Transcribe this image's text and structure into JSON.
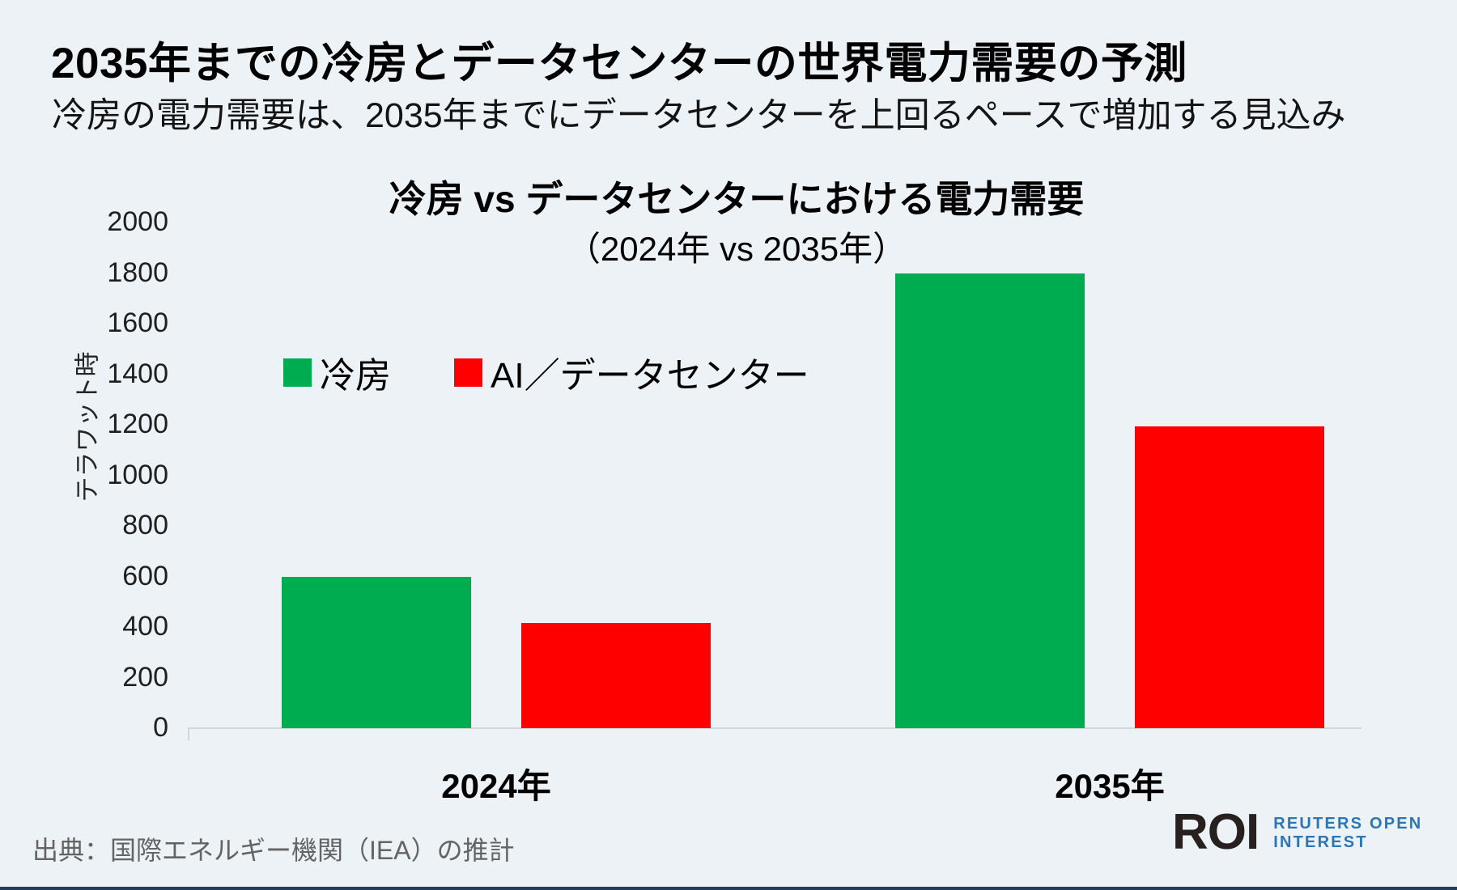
{
  "page": {
    "title": "2035年までの冷房とデータセンターの世界電力需要の予測",
    "subtitle": "冷房の電力需要は、2035年までにデータセンターを上回るペースで増加する見込み",
    "source": "出典：国際エネルギー機関（IEA）の推計",
    "logo": {
      "short": "ROI",
      "line1": "REUTERS OPEN",
      "line2": "INTEREST"
    }
  },
  "chart_data": {
    "type": "bar",
    "title": "冷房 vs データセンターにおける電力需要",
    "subtitle": "（2024年 vs 2035年）",
    "ylabel": "テラワット時",
    "categories": [
      "2024年",
      "2035年"
    ],
    "series": [
      {
        "name": "冷房",
        "color": "#00AC50",
        "values": [
          600,
          1800
        ]
      },
      {
        "name": "AI／データセンター",
        "color": "#FE0000",
        "values": [
          415,
          1195
        ]
      }
    ],
    "ylim": [
      0,
      2000
    ],
    "ytick_step": 200,
    "grid": false,
    "legend_position": "upper-left-inside"
  },
  "colors": {
    "background": "#edf2f6",
    "bar_green": "#00AC50",
    "bar_red": "#FE0000",
    "axis_line": "#d3d7db",
    "source_text": "#646464",
    "logo_dark": "#26211f",
    "logo_blue": "#2d76b4",
    "bottom_strip": "#1d3e5e"
  }
}
